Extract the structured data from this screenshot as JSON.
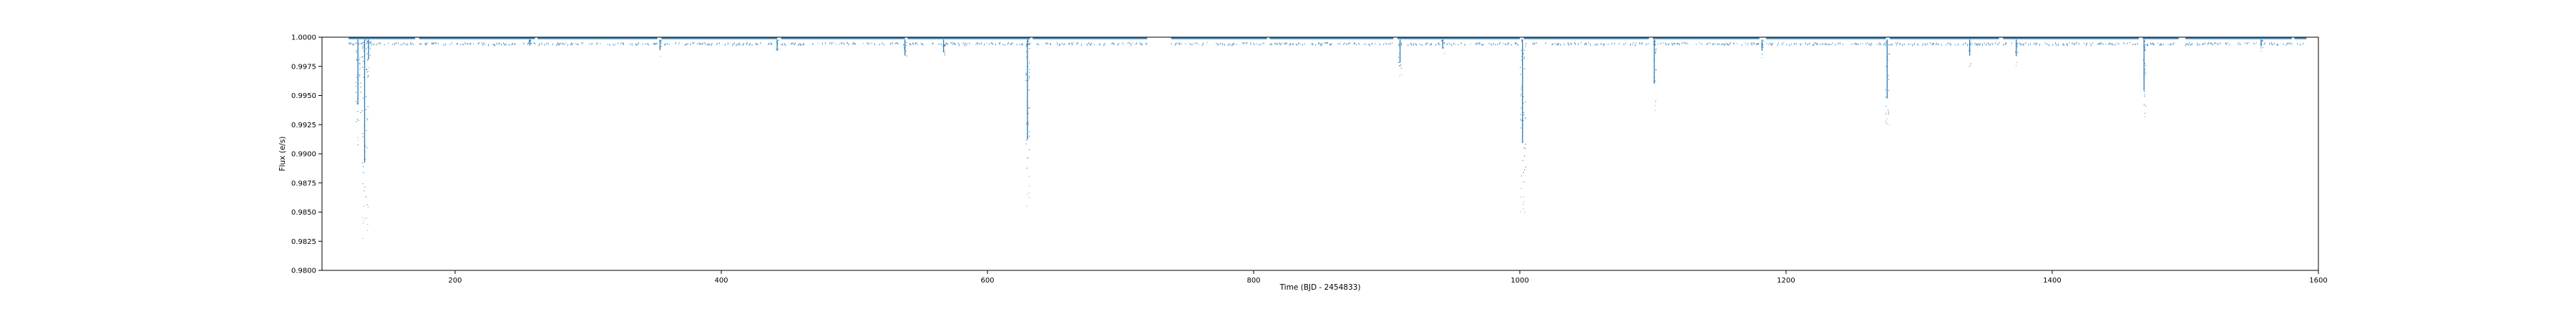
{
  "chart_data": {
    "type": "scatter",
    "title": "",
    "xlabel": "Time (BJD - 2454833)",
    "ylabel": "Flux (e/s)",
    "xlim": [
      100,
      1600
    ],
    "ylim": [
      0.98,
      1.0
    ],
    "grid": false,
    "x_ticks": [
      200,
      400,
      600,
      800,
      1000,
      1200,
      1400,
      1600
    ],
    "x_tick_labels": [
      "200",
      "400",
      "600",
      "800",
      "1000",
      "1200",
      "1400",
      "1600"
    ],
    "y_ticks": [
      0.98,
      0.9825,
      0.985,
      0.9875,
      0.99,
      0.9925,
      0.995,
      0.9975,
      1.0
    ],
    "y_tick_labels": [
      "0.9800",
      "0.9825",
      "0.9850",
      "0.9875",
      "0.9900",
      "0.9925",
      "0.9950",
      "0.9975",
      "1.0000"
    ],
    "series": [
      {
        "color": "#1f77b4",
        "baseline": 0.9998,
        "observed_segments": [
          [
            120,
            170
          ],
          [
            173,
            260
          ],
          [
            262,
            352
          ],
          [
            355,
            442
          ],
          [
            445,
            538
          ],
          [
            540,
            632
          ],
          [
            634,
            720
          ],
          [
            738,
            810
          ],
          [
            812,
            905
          ],
          [
            908,
            1000
          ],
          [
            1003,
            1097
          ],
          [
            1100,
            1180
          ],
          [
            1185,
            1275
          ],
          [
            1278,
            1360
          ],
          [
            1363,
            1465
          ],
          [
            1468,
            1495
          ],
          [
            1500,
            1580
          ],
          [
            1582,
            1591
          ]
        ],
        "dips": [
          {
            "x": 127,
            "width": 4,
            "min": 0.9905
          },
          {
            "x": 132,
            "width": 5,
            "min": 0.9822
          },
          {
            "x": 135,
            "width": 3,
            "min": 0.997
          },
          {
            "x": 256,
            "width": 2,
            "min": 0.9992
          },
          {
            "x": 354,
            "width": 2,
            "min": 0.9983
          },
          {
            "x": 442,
            "width": 2,
            "min": 0.9982
          },
          {
            "x": 538,
            "width": 2,
            "min": 0.9975
          },
          {
            "x": 567,
            "width": 2,
            "min": 0.998
          },
          {
            "x": 630,
            "width": 3,
            "min": 0.9855
          },
          {
            "x": 910,
            "width": 3,
            "min": 0.9965
          },
          {
            "x": 942,
            "width": 2,
            "min": 0.9985
          },
          {
            "x": 1002,
            "width": 4,
            "min": 0.985
          },
          {
            "x": 1101,
            "width": 2,
            "min": 0.9935
          },
          {
            "x": 1182,
            "width": 2,
            "min": 0.9982
          },
          {
            "x": 1276,
            "width": 3,
            "min": 0.9915
          },
          {
            "x": 1338,
            "width": 2,
            "min": 0.9975
          },
          {
            "x": 1373,
            "width": 2,
            "min": 0.9975
          },
          {
            "x": 1469,
            "width": 2,
            "min": 0.9925
          },
          {
            "x": 1557,
            "width": 2,
            "min": 0.9988
          }
        ]
      }
    ]
  }
}
